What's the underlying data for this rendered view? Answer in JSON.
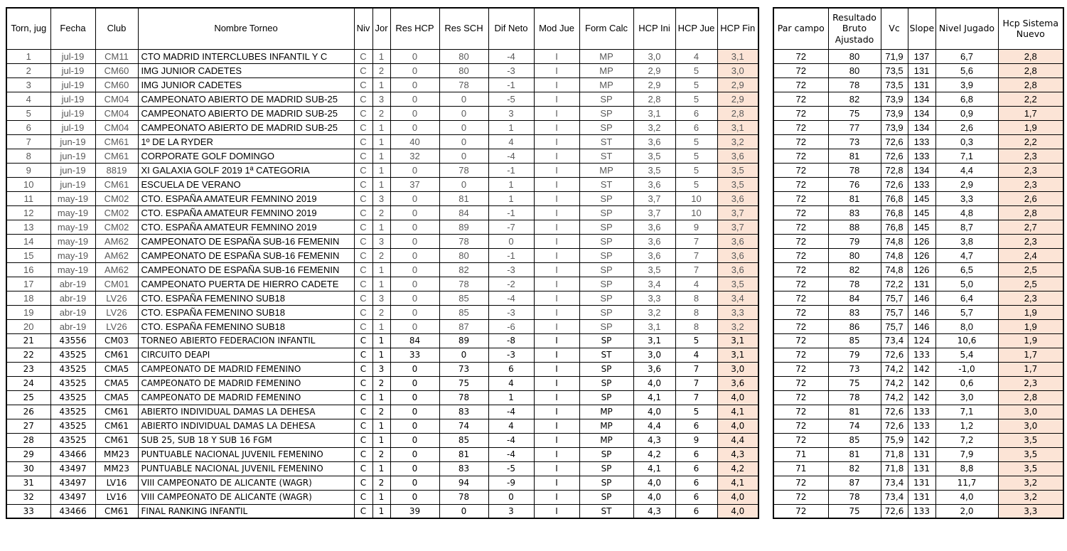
{
  "colors": {
    "highlight": "#FCE4D6",
    "grid": "#000000",
    "text": "#000000",
    "muted_text": "#595959"
  },
  "tables": {
    "tournaments": {
      "headers": [
        "Torn, jug",
        "Fecha",
        "Club",
        "Nombre Torneo",
        "Niv",
        "Jor",
        "Res HCP",
        "Res SCH",
        "Dif Neto",
        "Mod Jue",
        "Form Calc",
        "HCP Ini",
        "HCP Jue",
        "HCP Fin"
      ],
      "highlight_col": 13,
      "name_col": 3,
      "rows": [
        [
          "1",
          "jul-19",
          "CM11",
          "CTO MADRID INTERCLUBES INFANTIL Y C",
          "C",
          "1",
          "0",
          "80",
          "-4",
          "I",
          "MP",
          "3,0",
          "4",
          "3,1"
        ],
        [
          "2",
          "jul-19",
          "CM60",
          "IMG JUNIOR CADETES",
          "C",
          "2",
          "0",
          "80",
          "-3",
          "I",
          "MP",
          "2,9",
          "5",
          "3,0"
        ],
        [
          "3",
          "jul-19",
          "CM60",
          "IMG JUNIOR CADETES",
          "C",
          "1",
          "0",
          "78",
          "-1",
          "I",
          "MP",
          "2,9",
          "5",
          "2,9"
        ],
        [
          "4",
          "jul-19",
          "CM04",
          "CAMPEONATO ABIERTO DE MADRID SUB-25",
          "C",
          "3",
          "0",
          "0",
          "-5",
          "I",
          "SP",
          "2,8",
          "5",
          "2,9"
        ],
        [
          "5",
          "jul-19",
          "CM04",
          "CAMPEONATO ABIERTO DE MADRID SUB-25",
          "C",
          "2",
          "0",
          "0",
          "3",
          "I",
          "SP",
          "3,1",
          "6",
          "2,8"
        ],
        [
          "6",
          "jul-19",
          "CM04",
          "CAMPEONATO ABIERTO DE MADRID SUB-25",
          "C",
          "1",
          "0",
          "0",
          "1",
          "I",
          "SP",
          "3,2",
          "6",
          "3,1"
        ],
        [
          "7",
          "jun-19",
          "CM61",
          "1º DE LA RYDER",
          "C",
          "1",
          "40",
          "0",
          "4",
          "I",
          "ST",
          "3,6",
          "5",
          "3,2"
        ],
        [
          "8",
          "jun-19",
          "CM61",
          "CORPORATE GOLF DOMINGO",
          "C",
          "1",
          "32",
          "0",
          "-4",
          "I",
          "ST",
          "3,5",
          "5",
          "3,6"
        ],
        [
          "9",
          "jun-19",
          "8819",
          "XI GALAXIA GOLF 2019 1ª CATEGORIA",
          "C",
          "1",
          "0",
          "78",
          "-1",
          "I",
          "MP",
          "3,5",
          "5",
          "3,5"
        ],
        [
          "10",
          "jun-19",
          "CM61",
          "ESCUELA DE VERANO",
          "C",
          "1",
          "37",
          "0",
          "1",
          "I",
          "ST",
          "3,6",
          "5",
          "3,5"
        ],
        [
          "11",
          "may-19",
          "CM02",
          "CTO. ESPAÑA AMATEUR FEMNINO 2019",
          "C",
          "3",
          "0",
          "81",
          "1",
          "I",
          "SP",
          "3,7",
          "10",
          "3,6"
        ],
        [
          "12",
          "may-19",
          "CM02",
          "CTO. ESPAÑA AMATEUR FEMNINO 2019",
          "C",
          "2",
          "0",
          "84",
          "-1",
          "I",
          "SP",
          "3,7",
          "10",
          "3,7"
        ],
        [
          "13",
          "may-19",
          "CM02",
          "CTO. ESPAÑA AMATEUR FEMNINO 2019",
          "C",
          "1",
          "0",
          "89",
          "-7",
          "I",
          "SP",
          "3,6",
          "9",
          "3,7"
        ],
        [
          "14",
          "may-19",
          "AM62",
          "CAMPEONATO DE ESPAÑA SUB-16 FEMENIN",
          "C",
          "3",
          "0",
          "78",
          "0",
          "I",
          "SP",
          "3,6",
          "7",
          "3,6"
        ],
        [
          "15",
          "may-19",
          "AM62",
          "CAMPEONATO DE ESPAÑA SUB-16 FEMENIN",
          "C",
          "2",
          "0",
          "80",
          "-1",
          "I",
          "SP",
          "3,6",
          "7",
          "3,6"
        ],
        [
          "16",
          "may-19",
          "AM62",
          "CAMPEONATO DE ESPAÑA SUB-16 FEMENIN",
          "C",
          "1",
          "0",
          "82",
          "-3",
          "I",
          "SP",
          "3,5",
          "7",
          "3,6"
        ],
        [
          "17",
          "abr-19",
          "CM01",
          "CAMPEONATO PUERTA DE HIERRO CADETE",
          "C",
          "1",
          "0",
          "78",
          "-2",
          "I",
          "SP",
          "3,4",
          "4",
          "3,5"
        ],
        [
          "18",
          "abr-19",
          "LV26",
          "CTO. ESPAÑA FEMENINO SUB18",
          "C",
          "3",
          "0",
          "85",
          "-4",
          "I",
          "SP",
          "3,3",
          "8",
          "3,4"
        ],
        [
          "19",
          "abr-19",
          "LV26",
          "CTO. ESPAÑA FEMENINO SUB18",
          "C",
          "2",
          "0",
          "85",
          "-3",
          "I",
          "SP",
          "3,2",
          "8",
          "3,3"
        ],
        [
          "20",
          "abr-19",
          "LV26",
          "CTO. ESPAÑA FEMENINO SUB18",
          "C",
          "1",
          "0",
          "87",
          "-6",
          "I",
          "SP",
          "3,1",
          "8",
          "3,2"
        ],
        [
          "21",
          "43556",
          "CM03",
          "TORNEO ABIERTO FEDERACION INFANTIL",
          "C",
          "1",
          "84",
          "89",
          "-8",
          "I",
          "SP",
          "3,1",
          "5",
          "3,1"
        ],
        [
          "22",
          "43525",
          "CM61",
          "CIRCUITO DEAPI",
          "C",
          "1",
          "33",
          "0",
          "-3",
          "I",
          "ST",
          "3,0",
          "4",
          "3,1"
        ],
        [
          "23",
          "43525",
          "CMA5",
          "CAMPEONATO DE MADRID FEMENINO",
          "C",
          "3",
          "0",
          "73",
          "6",
          "I",
          "SP",
          "3,6",
          "7",
          "3,0"
        ],
        [
          "24",
          "43525",
          "CMA5",
          "CAMPEONATO DE MADRID FEMENINO",
          "C",
          "2",
          "0",
          "75",
          "4",
          "I",
          "SP",
          "4,0",
          "7",
          "3,6"
        ],
        [
          "25",
          "43525",
          "CMA5",
          "CAMPEONATO DE MADRID FEMENINO",
          "C",
          "1",
          "0",
          "78",
          "1",
          "I",
          "SP",
          "4,1",
          "7",
          "4,0"
        ],
        [
          "26",
          "43525",
          "CM61",
          "ABIERTO INDIVIDUAL DAMAS LA DEHESA",
          "C",
          "2",
          "0",
          "83",
          "-4",
          "I",
          "MP",
          "4,0",
          "5",
          "4,1"
        ],
        [
          "27",
          "43525",
          "CM61",
          "ABIERTO INDIVIDUAL DAMAS LA DEHESA",
          "C",
          "1",
          "0",
          "74",
          "4",
          "I",
          "MP",
          "4,4",
          "6",
          "4,0"
        ],
        [
          "28",
          "43525",
          "CM61",
          "SUB 25, SUB 18 Y SUB 16 FGM",
          "C",
          "1",
          "0",
          "85",
          "-4",
          "I",
          "MP",
          "4,3",
          "9",
          "4,4"
        ],
        [
          "29",
          "43466",
          "MM23",
          "PUNTUABLE NACIONAL JUVENIL FEMENINO",
          "C",
          "2",
          "0",
          "81",
          "-4",
          "I",
          "SP",
          "4,2",
          "6",
          "4,3"
        ],
        [
          "30",
          "43497",
          "MM23",
          "PUNTUABLE NACIONAL JUVENIL FEMENINO",
          "C",
          "1",
          "0",
          "83",
          "-5",
          "I",
          "SP",
          "4,1",
          "6",
          "4,2"
        ],
        [
          "31",
          "43497",
          "LV16",
          "VIII CAMPEONATO DE ALICANTE (WAGR)",
          "C",
          "2",
          "0",
          "94",
          "-9",
          "I",
          "SP",
          "4,0",
          "6",
          "4,1"
        ],
        [
          "32",
          "43497",
          "LV16",
          "VIII CAMPEONATO DE ALICANTE (WAGR)",
          "C",
          "1",
          "0",
          "78",
          "0",
          "I",
          "SP",
          "4,0",
          "6",
          "4,0"
        ],
        [
          "33",
          "43466",
          "CM61",
          "FINAL RANKING INFANTIL",
          "C",
          "1",
          "39",
          "0",
          "3",
          "I",
          "ST",
          "4,3",
          "6",
          "4,0"
        ]
      ]
    },
    "course_results": {
      "headers": [
        "Par campo",
        "Resultado Bruto Ajustado",
        "Vc",
        "Slope",
        "Nivel Jugado",
        "Hcp Sistema Nuevo"
      ],
      "highlight_col": 5,
      "rows": [
        [
          "72",
          "80",
          "71,9",
          "137",
          "6,7",
          "2,8"
        ],
        [
          "72",
          "80",
          "73,5",
          "131",
          "5,6",
          "2,8"
        ],
        [
          "72",
          "78",
          "73,5",
          "131",
          "3,9",
          "2,8"
        ],
        [
          "72",
          "82",
          "73,9",
          "134",
          "6,8",
          "2,2"
        ],
        [
          "72",
          "75",
          "73,9",
          "134",
          "0,9",
          "1,7"
        ],
        [
          "72",
          "77",
          "73,9",
          "134",
          "2,6",
          "1,9"
        ],
        [
          "72",
          "73",
          "72,6",
          "133",
          "0,3",
          "2,2"
        ],
        [
          "72",
          "81",
          "72,6",
          "133",
          "7,1",
          "2,3"
        ],
        [
          "72",
          "78",
          "72,8",
          "134",
          "4,4",
          "2,3"
        ],
        [
          "72",
          "76",
          "72,6",
          "133",
          "2,9",
          "2,3"
        ],
        [
          "72",
          "81",
          "76,8",
          "145",
          "3,3",
          "2,6"
        ],
        [
          "72",
          "83",
          "76,8",
          "145",
          "4,8",
          "2,8"
        ],
        [
          "72",
          "88",
          "76,8",
          "145",
          "8,7",
          "2,7"
        ],
        [
          "72",
          "79",
          "74,8",
          "126",
          "3,8",
          "2,3"
        ],
        [
          "72",
          "80",
          "74,8",
          "126",
          "4,7",
          "2,4"
        ],
        [
          "72",
          "82",
          "74,8",
          "126",
          "6,5",
          "2,5"
        ],
        [
          "72",
          "78",
          "72,2",
          "131",
          "5,0",
          "2,5"
        ],
        [
          "72",
          "84",
          "75,7",
          "146",
          "6,4",
          "2,3"
        ],
        [
          "72",
          "83",
          "75,7",
          "146",
          "5,7",
          "1,9"
        ],
        [
          "72",
          "86",
          "75,7",
          "146",
          "8,0",
          "1,9"
        ],
        [
          "72",
          "85",
          "73,4",
          "124",
          "10,6",
          "1,9"
        ],
        [
          "72",
          "79",
          "72,6",
          "133",
          "5,4",
          "1,7"
        ],
        [
          "72",
          "73",
          "74,2",
          "142",
          "-1,0",
          "1,7"
        ],
        [
          "72",
          "75",
          "74,2",
          "142",
          "0,6",
          "2,3"
        ],
        [
          "72",
          "78",
          "74,2",
          "142",
          "3,0",
          "2,8"
        ],
        [
          "72",
          "81",
          "72,6",
          "133",
          "7,1",
          "3,0"
        ],
        [
          "72",
          "74",
          "72,6",
          "133",
          "1,2",
          "3,0"
        ],
        [
          "72",
          "85",
          "75,9",
          "142",
          "7,2",
          "3,5"
        ],
        [
          "71",
          "81",
          "71,8",
          "131",
          "7,9",
          "3,5"
        ],
        [
          "71",
          "82",
          "71,8",
          "131",
          "8,8",
          "3,5"
        ],
        [
          "72",
          "87",
          "73,4",
          "131",
          "11,7",
          "3,2"
        ],
        [
          "72",
          "78",
          "73,4",
          "131",
          "4,0",
          "3,2"
        ],
        [
          "72",
          "75",
          "72,6",
          "133",
          "2,0",
          "3,3"
        ]
      ]
    }
  }
}
